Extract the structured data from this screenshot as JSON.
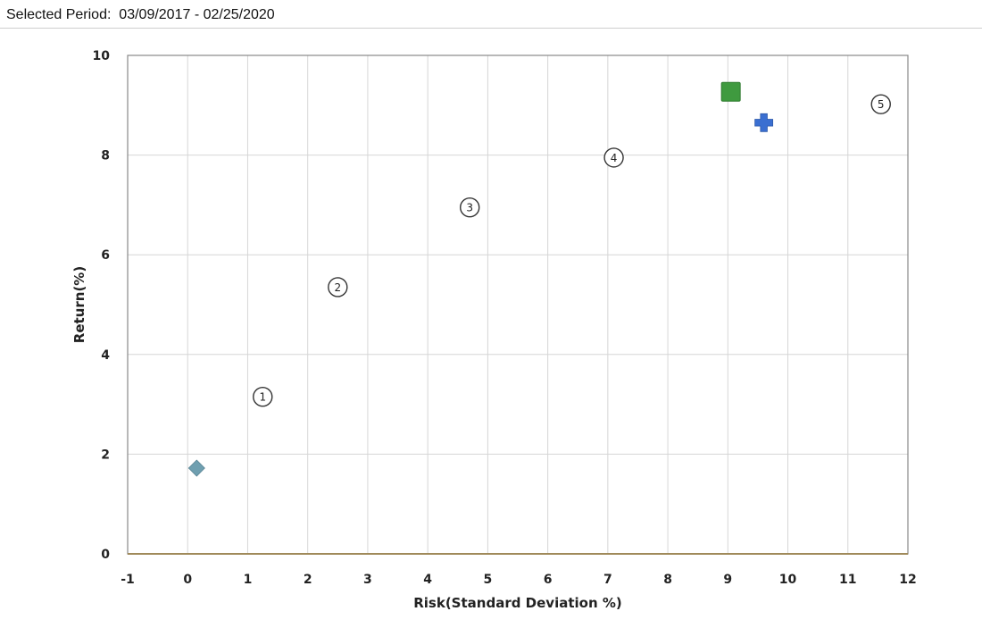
{
  "header": {
    "period_label": "Selected Period:",
    "period_range": "03/09/2017 - 02/25/2020"
  },
  "chart_data": {
    "type": "scatter",
    "title": "",
    "xlabel": "Risk(Standard Deviation %)",
    "ylabel": "Return(%)",
    "xlim": [
      -1,
      12
    ],
    "ylim": [
      0,
      10
    ],
    "xticks": [
      -1,
      0,
      1,
      2,
      3,
      4,
      5,
      6,
      7,
      8,
      9,
      10,
      11,
      12
    ],
    "yticks": [
      0,
      2,
      4,
      6,
      8,
      10
    ],
    "grid": true,
    "points": [
      {
        "label": "1",
        "marker": "circle-number",
        "x": 1.25,
        "y": 3.15
      },
      {
        "label": "2",
        "marker": "circle-number",
        "x": 2.5,
        "y": 5.35
      },
      {
        "label": "3",
        "marker": "circle-number",
        "x": 4.7,
        "y": 6.95
      },
      {
        "label": "4",
        "marker": "circle-number",
        "x": 7.1,
        "y": 7.95
      },
      {
        "label": "5",
        "marker": "circle-number",
        "x": 11.55,
        "y": 9.02
      },
      {
        "label": "",
        "marker": "diamond",
        "color": "#6f9fb0",
        "x": 0.15,
        "y": 1.72
      },
      {
        "label": "",
        "marker": "square",
        "color": "#3f9a3f",
        "x": 9.05,
        "y": 9.27
      },
      {
        "label": "",
        "marker": "cross",
        "color": "#3a6fd1",
        "x": 9.6,
        "y": 8.65
      }
    ],
    "colors": {
      "grid": "#d6d6d6",
      "frame": "#888888",
      "x_axis_line": "#a08a5a"
    }
  }
}
